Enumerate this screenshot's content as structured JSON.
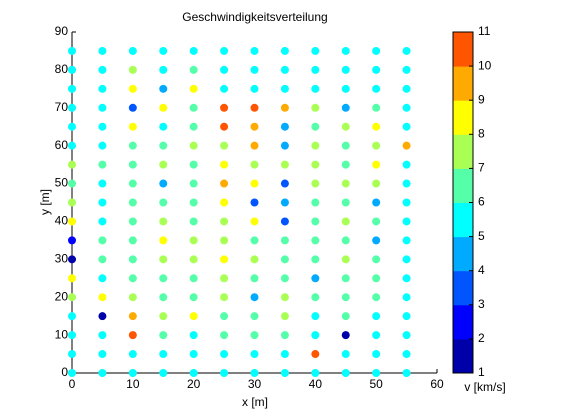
{
  "chart_data": {
    "type": "scatter",
    "title": "Geschwindigkeitsverteilung",
    "x_label": "x [m]",
    "y_label": "y [m]",
    "xlim": [
      0,
      60
    ],
    "xticks": [
      0,
      10,
      20,
      30,
      40,
      50,
      60
    ],
    "ylim": [
      0,
      90
    ],
    "yticks": [
      0,
      10,
      20,
      30,
      40,
      50,
      60,
      70,
      80,
      90
    ],
    "colorbar": {
      "label": "v [km/s]",
      "clim": [
        1,
        11
      ],
      "ticks": [
        1,
        2,
        3,
        4,
        5,
        6,
        7,
        8,
        9,
        10,
        11
      ],
      "colors": [
        "#0000aa",
        "#0000ff",
        "#0055ff",
        "#00aaff",
        "#00ffff",
        "#55ffaa",
        "#aaff55",
        "#ffff00",
        "#ffaa00",
        "#ff5500"
      ]
    },
    "x": [
      0,
      5,
      10,
      15,
      20,
      25,
      30,
      35,
      40,
      45,
      50,
      55,
      0,
      5,
      10,
      15,
      20,
      25,
      30,
      35,
      40,
      45,
      50,
      55,
      0,
      5,
      10,
      15,
      20,
      25,
      30,
      35,
      40,
      45,
      50,
      55,
      0,
      5,
      10,
      15,
      20,
      25,
      30,
      35,
      40,
      45,
      50,
      55,
      0,
      5,
      10,
      15,
      20,
      25,
      30,
      35,
      40,
      45,
      50,
      55,
      0,
      5,
      10,
      15,
      20,
      25,
      30,
      35,
      40,
      45,
      50,
      55,
      0,
      5,
      10,
      15,
      20,
      25,
      30,
      35,
      40,
      45,
      50,
      55,
      0,
      5,
      10,
      15,
      20,
      25,
      30,
      35,
      40,
      45,
      50,
      55,
      0,
      5,
      10,
      15,
      20,
      25,
      30,
      35,
      40,
      45,
      50,
      55,
      0,
      5,
      10,
      15,
      20,
      25,
      30,
      35,
      40,
      45,
      50,
      55,
      0,
      5,
      10,
      15,
      20,
      25,
      30,
      35,
      40,
      45,
      50,
      55,
      0,
      5,
      10,
      15,
      20,
      25,
      30,
      35,
      40,
      45,
      50,
      55,
      0,
      5,
      10,
      15,
      20,
      25,
      30,
      35,
      40,
      45,
      50,
      55,
      0,
      5,
      10,
      15,
      20,
      25,
      30,
      35,
      40,
      45,
      50,
      55,
      0,
      5,
      10,
      15,
      20,
      25,
      30,
      35,
      40,
      45,
      50,
      55,
      0,
      5,
      10,
      15,
      20,
      25,
      30,
      35,
      40,
      45,
      50,
      55,
      0,
      5,
      10,
      15,
      20,
      25,
      30,
      35,
      40,
      45,
      50,
      55,
      0,
      5,
      10,
      15,
      20,
      25,
      30,
      35,
      40,
      45,
      50,
      55
    ],
    "y": [
      85,
      85,
      85,
      85,
      85,
      85,
      85,
      85,
      85,
      85,
      85,
      85,
      80,
      80,
      80,
      80,
      80,
      80,
      80,
      80,
      80,
      80,
      80,
      80,
      75,
      75,
      75,
      75,
      75,
      75,
      75,
      75,
      75,
      75,
      75,
      75,
      70,
      70,
      70,
      70,
      70,
      70,
      70,
      70,
      70,
      70,
      70,
      70,
      65,
      65,
      65,
      65,
      65,
      65,
      65,
      65,
      65,
      65,
      65,
      65,
      60,
      60,
      60,
      60,
      60,
      60,
      60,
      60,
      60,
      60,
      60,
      60,
      55,
      55,
      55,
      55,
      55,
      55,
      55,
      55,
      55,
      55,
      55,
      55,
      50,
      50,
      50,
      50,
      50,
      50,
      50,
      50,
      50,
      50,
      50,
      50,
      45,
      45,
      45,
      45,
      45,
      45,
      45,
      45,
      45,
      45,
      45,
      45,
      40,
      40,
      40,
      40,
      40,
      40,
      40,
      40,
      40,
      40,
      40,
      40,
      35,
      35,
      35,
      35,
      35,
      35,
      35,
      35,
      35,
      35,
      35,
      35,
      30,
      30,
      30,
      30,
      30,
      30,
      30,
      30,
      30,
      30,
      30,
      30,
      25,
      25,
      25,
      25,
      25,
      25,
      25,
      25,
      25,
      25,
      25,
      25,
      20,
      20,
      20,
      20,
      20,
      20,
      20,
      20,
      20,
      20,
      20,
      20,
      15,
      15,
      15,
      15,
      15,
      15,
      15,
      15,
      15,
      15,
      15,
      15,
      10,
      10,
      10,
      10,
      10,
      10,
      10,
      10,
      10,
      10,
      10,
      10,
      5,
      5,
      5,
      5,
      5,
      5,
      5,
      5,
      5,
      5,
      5,
      5,
      0,
      0,
      0,
      0,
      0,
      0,
      0,
      0,
      0,
      0,
      0,
      0
    ],
    "values": [
      5.5,
      5.5,
      5.5,
      5.5,
      5.5,
      5.5,
      5.5,
      5.5,
      5.5,
      5.5,
      5.5,
      5.5,
      5.5,
      5.5,
      7.5,
      5.5,
      6.5,
      5.5,
      5.5,
      5.5,
      5.5,
      5.5,
      5.5,
      5.5,
      5.5,
      5.5,
      8.5,
      4.5,
      8.5,
      5.5,
      5.5,
      5.5,
      5.5,
      5.5,
      5.5,
      5.5,
      5.5,
      5.5,
      3.5,
      8.5,
      6.5,
      10.5,
      10.5,
      9.5,
      7.5,
      4.5,
      6.5,
      5.5,
      5.5,
      5.5,
      8.5,
      5.5,
      6.5,
      10.5,
      9.5,
      4.5,
      6.5,
      7.5,
      8.5,
      5.5,
      5.5,
      5.5,
      6.5,
      6.5,
      7.5,
      7.5,
      9.5,
      4.5,
      7.5,
      6.5,
      7.5,
      9.5,
      7.5,
      6.5,
      6.5,
      7.5,
      6.5,
      8.5,
      7.5,
      7.5,
      7.5,
      6.5,
      8.5,
      5.5,
      6.5,
      5.5,
      6.5,
      4.5,
      6.5,
      9.5,
      8.5,
      3.5,
      7.5,
      7.5,
      7.5,
      5.5,
      7.5,
      5.5,
      6.5,
      6.5,
      6.5,
      8.5,
      3.5,
      4.5,
      6.5,
      6.5,
      4.5,
      5.5,
      8.5,
      5.5,
      6.5,
      7.5,
      6.5,
      7.5,
      8.5,
      3.5,
      6.5,
      7.5,
      6.5,
      5.5,
      2.5,
      6.5,
      6.5,
      8.5,
      7.5,
      7.5,
      6.5,
      6.5,
      6.5,
      6.5,
      4.5,
      5.5,
      1.5,
      6.5,
      6.5,
      7.5,
      7.5,
      8.5,
      7.5,
      6.5,
      6.5,
      7.5,
      6.5,
      5.5,
      8.5,
      5.5,
      6.5,
      6.5,
      6.5,
      7.5,
      6.5,
      6.5,
      4.5,
      6.5,
      6.5,
      5.5,
      7.5,
      8.5,
      7.5,
      6.5,
      6.5,
      7.5,
      4.5,
      7.5,
      6.5,
      6.5,
      6.5,
      5.5,
      5.5,
      1.5,
      9.5,
      7.5,
      8.5,
      6.5,
      6.5,
      7.5,
      5.5,
      6.5,
      5.5,
      5.5,
      5.5,
      5.5,
      10.5,
      6.5,
      5.5,
      6.5,
      6.5,
      6.5,
      5.5,
      1.5,
      5.5,
      5.5,
      5.5,
      5.5,
      5.5,
      5.5,
      5.5,
      5.5,
      5.5,
      5.5,
      10.5,
      5.5,
      5.5,
      5.5,
      5.5,
      5.5,
      5.5,
      5.5,
      5.5,
      5.5,
      5.5,
      5.5,
      5.5,
      5.5,
      5.5,
      5.5
    ]
  }
}
